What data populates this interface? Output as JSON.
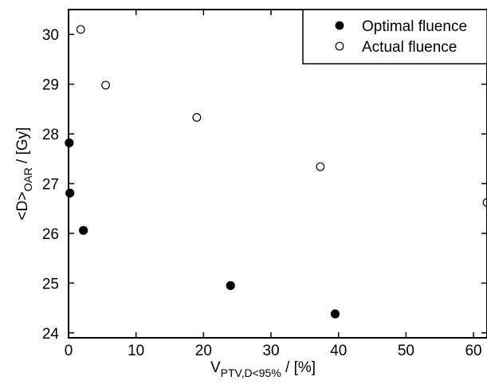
{
  "chart_data": {
    "type": "scatter",
    "xlim": [
      0,
      62
    ],
    "ylim": [
      23.9,
      30.5
    ],
    "xticks": [
      0,
      10,
      20,
      30,
      40,
      50,
      60
    ],
    "yticks": [
      24,
      25,
      26,
      27,
      28,
      29,
      30
    ],
    "xlabel": {
      "main": "V",
      "sub": "PTV,D<95%",
      "unit": " / [%]"
    },
    "ylabel": {
      "main": "<D>",
      "sub": "OAR",
      "unit": " / [Gy]"
    },
    "grid": false,
    "legend_position": "top-right",
    "series": [
      {
        "name": "Optimal fluence",
        "marker": "filled-circle",
        "color": "#000000",
        "points": [
          [
            0.1,
            27.82
          ],
          [
            0.2,
            26.81
          ],
          [
            2.2,
            26.06
          ],
          [
            24.0,
            24.95
          ],
          [
            39.5,
            24.38
          ]
        ]
      },
      {
        "name": "Actual fluence",
        "marker": "open-circle",
        "color": "#000000",
        "points": [
          [
            1.8,
            30.1
          ],
          [
            5.5,
            28.98
          ],
          [
            19.0,
            28.33
          ],
          [
            37.3,
            27.34
          ],
          [
            62.0,
            26.62
          ]
        ]
      }
    ]
  }
}
